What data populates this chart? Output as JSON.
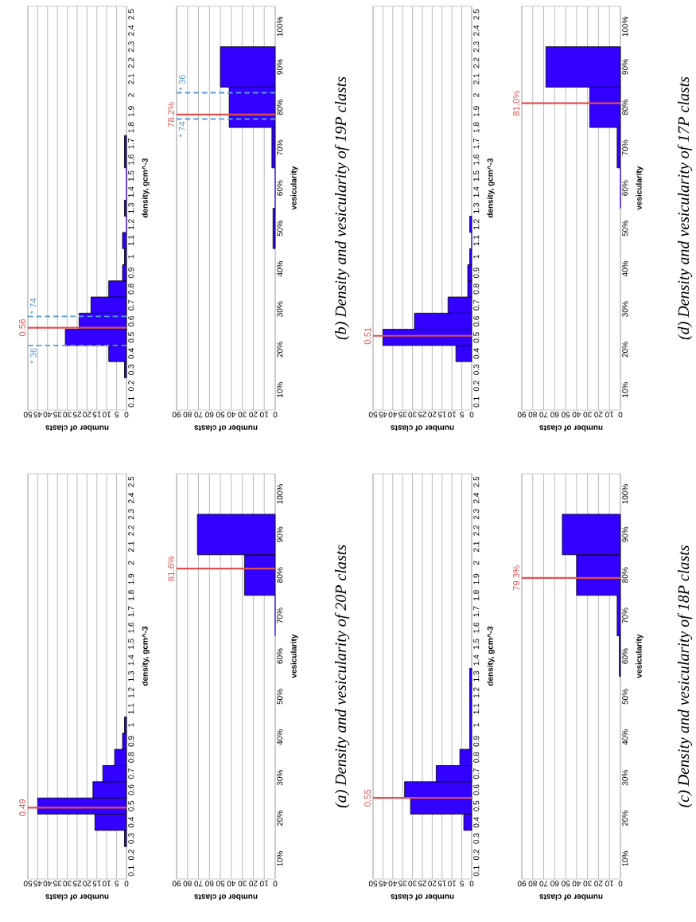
{
  "chart_data": [
    {
      "type": "histogram",
      "orientation": "horizontal",
      "ylabel": "density, gcm^-3",
      "xlabel": "number of clasts",
      "color": "#3300ff",
      "grid": "x",
      "ylim": [
        0.05,
        2.55
      ],
      "xlim": [
        50,
        0
      ],
      "bins": [
        0.25,
        0.35,
        0.45,
        0.55,
        0.65,
        0.75,
        0.85,
        0.95,
        1.05
      ],
      "values": [
        1,
        16,
        45,
        17,
        12,
        6,
        2,
        1
      ],
      "yticks": [
        0.1,
        0.2,
        0.3,
        0.4,
        0.5,
        0.6,
        0.7,
        0.8,
        0.9,
        1,
        1.1,
        1.2,
        1.3,
        1.4,
        1.5,
        1.6,
        1.7,
        1.8,
        1.9,
        2,
        2.1,
        2.2,
        2.3,
        2.4,
        2.5
      ],
      "xticks": [
        50,
        45,
        40,
        35,
        30,
        25,
        20,
        15,
        10,
        5,
        0
      ],
      "ref_lines": [
        {
          "axis": "y",
          "value": 0.49,
          "label": "0.49",
          "color": "#e0504f"
        }
      ]
    },
    {
      "type": "histogram",
      "orientation": "horizontal",
      "ylabel": "vesicularity",
      "xlabel": "number of clasts",
      "color": "#3300ff",
      "grid": "x",
      "ylim": [
        5,
        105
      ],
      "xlim": [
        90,
        0
      ],
      "bins": [
        65,
        75,
        85,
        95
      ],
      "values": [
        0,
        28,
        71
      ],
      "yticks": [
        {
          "value": 10,
          "label": "10%"
        },
        {
          "value": 20,
          "label": "20%"
        },
        {
          "value": 30,
          "label": "30%"
        },
        {
          "value": 40,
          "label": "40%"
        },
        {
          "value": 50,
          "label": "50%"
        },
        {
          "value": 60,
          "label": "60%"
        },
        {
          "value": 70,
          "label": "70%"
        },
        {
          "value": 80,
          "label": "80%"
        },
        {
          "value": 90,
          "label": "90%"
        },
        {
          "value": 100,
          "label": "100%"
        }
      ],
      "xticks": [
        90,
        80,
        70,
        60,
        50,
        40,
        30,
        20,
        10,
        0
      ],
      "ref_lines": [
        {
          "axis": "y",
          "value": 81.6,
          "label": "81.6%",
          "color": "#e0504f"
        }
      ],
      "annotations": [
        "(a) Density and vesicularity of 20P clasts"
      ]
    },
    {
      "type": "histogram",
      "orientation": "horizontal",
      "ylabel": "density, gcm^-3",
      "xlabel": "number of clasts",
      "color": "#3300ff",
      "grid": "x",
      "ylim": [
        0.05,
        2.55
      ],
      "xlim": [
        50,
        0
      ],
      "bins": [
        0.25,
        0.35,
        0.45,
        0.55,
        0.65,
        0.75,
        0.85,
        0.95,
        1.05,
        1.15,
        1.25,
        1.35,
        1.45,
        1.55,
        1.65,
        1.75
      ],
      "values": [
        1,
        9,
        31,
        24,
        18,
        9,
        2,
        1,
        2,
        0,
        1,
        0,
        0,
        1,
        1
      ],
      "yticks": [
        0.1,
        0.2,
        0.3,
        0.4,
        0.5,
        0.6,
        0.7,
        0.8,
        0.9,
        1,
        1.1,
        1.2,
        1.3,
        1.4,
        1.5,
        1.6,
        1.7,
        1.8,
        1.9,
        2,
        2.1,
        2.2,
        2.3,
        2.4,
        2.5
      ],
      "xticks": [
        50,
        45,
        40,
        35,
        30,
        25,
        20,
        15,
        10,
        5,
        0
      ],
      "ref_lines": [
        {
          "axis": "y",
          "value": 0.45,
          "color": "#5b9bd5",
          "line_style": "dashed"
        },
        {
          "axis": "y",
          "value": 0.63,
          "color": "#5b9bd5",
          "line_style": "dashed"
        },
        {
          "axis": "y",
          "value": 0.56,
          "label": "0.56",
          "color": "#e0504f"
        }
      ],
      "annotations": [
        {
          "text": "* 36",
          "y": 0.45
        },
        {
          "text": "* 74",
          "y": 0.63
        }
      ]
    },
    {
      "type": "histogram",
      "orientation": "horizontal",
      "ylabel": "vesicularity",
      "xlabel": "number of clasts",
      "color": "#3300ff",
      "grid": "x",
      "ylim": [
        5,
        105
      ],
      "xlim": [
        90,
        0
      ],
      "bins": [
        45,
        55,
        65,
        75,
        85,
        95
      ],
      "values": [
        2,
        0,
        3,
        42,
        50
      ],
      "yticks": [
        {
          "value": 10,
          "label": "10%"
        },
        {
          "value": 20,
          "label": "20%"
        },
        {
          "value": 30,
          "label": "30%"
        },
        {
          "value": 40,
          "label": "40%"
        },
        {
          "value": 50,
          "label": "50%"
        },
        {
          "value": 60,
          "label": "60%"
        },
        {
          "value": 70,
          "label": "70%"
        },
        {
          "value": 80,
          "label": "80%"
        },
        {
          "value": 90,
          "label": "90%"
        },
        {
          "value": 100,
          "label": "100%"
        }
      ],
      "xticks": [
        90,
        80,
        70,
        60,
        50,
        40,
        30,
        20,
        10,
        0
      ],
      "ref_lines": [
        {
          "axis": "y",
          "value": 77.1,
          "color": "#5b9bd5",
          "line_style": "dashed"
        },
        {
          "axis": "y",
          "value": 83.6,
          "color": "#5b9bd5",
          "line_style": "dashed"
        },
        {
          "axis": "y",
          "value": 78.2,
          "label": "78.2%",
          "color": "#e0504f"
        }
      ],
      "annotations": [
        {
          "text": "* 74",
          "y": 77.1
        },
        {
          "text": "* 36",
          "y": 83.6
        },
        "(b) Density and vesicularity of 19P clasts"
      ]
    },
    {
      "type": "histogram",
      "orientation": "horizontal",
      "ylabel": "density, gcm^-3",
      "xlabel": "number of clasts",
      "color": "#3300ff",
      "grid": "x",
      "ylim": [
        0.05,
        2.55
      ],
      "xlim": [
        50,
        0
      ],
      "bins": [
        0.35,
        0.45,
        0.55,
        0.65,
        0.75,
        0.85,
        0.95,
        1.05,
        1.15,
        1.25,
        1.35
      ],
      "values": [
        4,
        31,
        34,
        18,
        6,
        1,
        1,
        1,
        1,
        1
      ],
      "yticks": [
        0.1,
        0.2,
        0.3,
        0.4,
        0.5,
        0.6,
        0.7,
        0.8,
        0.9,
        1,
        1.1,
        1.2,
        1.3,
        1.4,
        1.5,
        1.6,
        1.7,
        1.8,
        1.9,
        2,
        2.1,
        2.2,
        2.3,
        2.4,
        2.5
      ],
      "xticks": [
        50,
        45,
        40,
        35,
        30,
        25,
        20,
        15,
        10,
        5,
        0
      ],
      "ref_lines": [
        {
          "axis": "y",
          "value": 0.55,
          "label": "0.55",
          "color": "#e0504f"
        }
      ]
    },
    {
      "type": "histogram",
      "orientation": "horizontal",
      "ylabel": "vesicularity",
      "xlabel": "number of clasts",
      "color": "#3300ff",
      "grid": "x",
      "ylim": [
        5,
        105
      ],
      "xlim": [
        90,
        0
      ],
      "bins": [
        55,
        65,
        75,
        85,
        95
      ],
      "values": [
        1,
        3,
        40,
        53
      ],
      "yticks": [
        {
          "value": 10,
          "label": "10%"
        },
        {
          "value": 20,
          "label": "20%"
        },
        {
          "value": 30,
          "label": "30%"
        },
        {
          "value": 40,
          "label": "40%"
        },
        {
          "value": 50,
          "label": "50%"
        },
        {
          "value": 60,
          "label": "60%"
        },
        {
          "value": 70,
          "label": "70%"
        },
        {
          "value": 80,
          "label": "80%"
        },
        {
          "value": 90,
          "label": "90%"
        },
        {
          "value": 100,
          "label": "100%"
        }
      ],
      "xticks": [
        90,
        80,
        70,
        60,
        50,
        40,
        30,
        20,
        10,
        0
      ],
      "ref_lines": [
        {
          "axis": "y",
          "value": 79.3,
          "label": "79.3%",
          "color": "#e0504f"
        }
      ],
      "annotations": [
        "(c) Density and vesicularity of 18P clasts"
      ]
    },
    {
      "type": "histogram",
      "orientation": "horizontal",
      "ylabel": "density, gcm^-3",
      "xlabel": "number of clasts",
      "color": "#3300ff",
      "grid": "x",
      "ylim": [
        0.05,
        2.55
      ],
      "xlim": [
        50,
        0
      ],
      "bins": [
        0.35,
        0.45,
        0.55,
        0.65,
        0.75,
        0.85,
        0.95,
        1.05,
        1.15,
        1.25
      ],
      "values": [
        8,
        45,
        29,
        12,
        2,
        2,
        1,
        0,
        1
      ],
      "yticks": [
        0.1,
        0.2,
        0.3,
        0.4,
        0.5,
        0.6,
        0.7,
        0.8,
        0.9,
        1,
        1.1,
        1.2,
        1.3,
        1.4,
        1.5,
        1.6,
        1.7,
        1.8,
        1.9,
        2,
        2.1,
        2.2,
        2.3,
        2.4,
        2.5
      ],
      "xticks": [
        50,
        45,
        40,
        35,
        30,
        25,
        20,
        15,
        10,
        5,
        0
      ],
      "ref_lines": [
        {
          "axis": "y",
          "value": 0.51,
          "label": "0.51",
          "color": "#e0504f"
        }
      ]
    },
    {
      "type": "histogram",
      "orientation": "horizontal",
      "ylabel": "vesicularity",
      "xlabel": "number of clasts",
      "color": "#3300ff",
      "grid": "x",
      "ylim": [
        5,
        105
      ],
      "xlim": [
        90,
        0
      ],
      "bins": [
        55,
        65,
        75,
        85,
        95
      ],
      "values": [
        0,
        3,
        28,
        68
      ],
      "yticks": [
        {
          "value": 10,
          "label": "10%"
        },
        {
          "value": 20,
          "label": "20%"
        },
        {
          "value": 30,
          "label": "30%"
        },
        {
          "value": 40,
          "label": "40%"
        },
        {
          "value": 50,
          "label": "50%"
        },
        {
          "value": 60,
          "label": "60%"
        },
        {
          "value": 70,
          "label": "70%"
        },
        {
          "value": 80,
          "label": "80%"
        },
        {
          "value": 90,
          "label": "90%"
        },
        {
          "value": 100,
          "label": "100%"
        }
      ],
      "xticks": [
        90,
        80,
        70,
        60,
        50,
        40,
        30,
        20,
        10,
        0
      ],
      "ref_lines": [
        {
          "axis": "y",
          "value": 81.0,
          "label": "81.0%",
          "color": "#e0504f"
        }
      ],
      "annotations": [
        "(d) Density and vesicularity of 17P clasts"
      ]
    }
  ]
}
